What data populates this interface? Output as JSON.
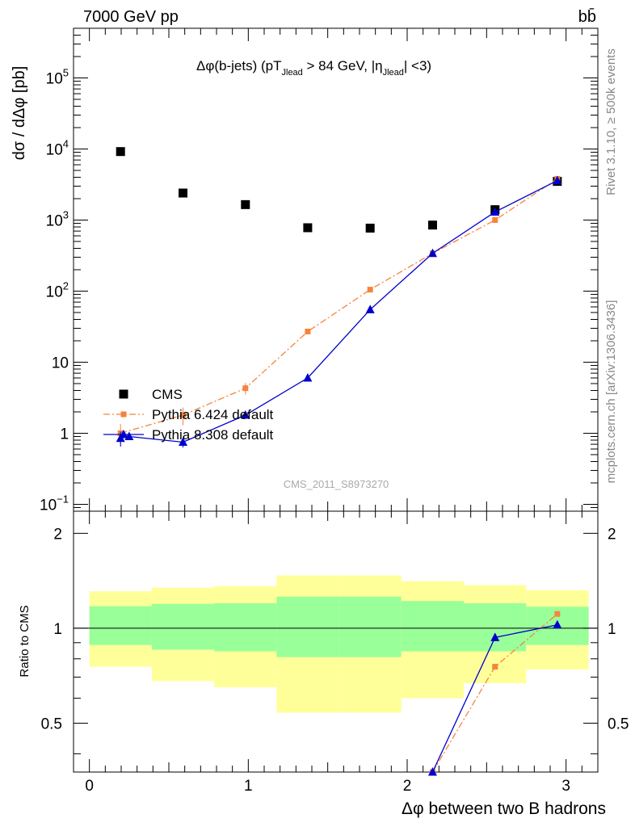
{
  "header": {
    "left": "7000 GeV pp",
    "right": "bb̄"
  },
  "side_labels": {
    "rivet": "Rivet 3.1.10, ≥ 500k events",
    "mcplots": "mcplots.cern.ch [arXiv:1306.3436]"
  },
  "watermark": "CMS_2011_S8973270",
  "chart_data": [
    {
      "type": "scatter",
      "panel": "main",
      "title": "Δφ(b-jets) (pT_Jlead > 84 GeV, |η_Jlead| <3)",
      "ylabel": "dσ / dΔφ [pb]",
      "xlim": [
        -0.1,
        3.2
      ],
      "ylim": [
        0.08,
        500000
      ],
      "yscale": "log",
      "yticks": [
        {
          "v": 0.1,
          "label": "10⁻¹"
        },
        {
          "v": 1,
          "label": "1"
        },
        {
          "v": 10,
          "label": "10"
        },
        {
          "v": 100,
          "label": "10²"
        },
        {
          "v": 1000,
          "label": "10³"
        },
        {
          "v": 10000,
          "label": "10⁴"
        },
        {
          "v": 100000,
          "label": "10⁵"
        }
      ],
      "legend": [
        "CMS",
        "Pythia 6.424 default",
        "Pythia 8.308 default"
      ],
      "legend_position": "lower-left",
      "series": [
        {
          "name": "CMS",
          "color": "#000000",
          "marker": "square",
          "x": [
            0.196,
            0.589,
            0.982,
            1.374,
            1.767,
            2.16,
            2.553,
            2.945
          ],
          "y": [
            9200,
            2400,
            1650,
            780,
            770,
            850,
            1400,
            3500
          ]
        },
        {
          "name": "Pythia 6.424 default",
          "color": "#f5843c",
          "marker": "square",
          "line": "dashdot",
          "x": [
            0.196,
            0.589,
            0.982,
            1.374,
            1.767,
            2.16,
            2.553,
            2.945
          ],
          "y": [
            1.0,
            1.8,
            4.3,
            27,
            105,
            340,
            1000,
            3800
          ],
          "yerr": [
            0.35,
            0.5,
            0.8,
            2,
            5,
            10,
            20,
            60
          ]
        },
        {
          "name": "Pythia 8.308 default",
          "color": "#0000cc",
          "marker": "triangle",
          "line": "solid",
          "x": [
            0.196,
            0.25,
            0.589,
            0.982,
            1.374,
            1.767,
            2.16,
            2.553,
            2.945
          ],
          "y": [
            0.85,
            0.9,
            0.75,
            1.8,
            6,
            55,
            340,
            1300,
            3600
          ],
          "yerr": [
            0.2,
            0.1,
            0.12,
            0.2,
            0.5,
            3,
            10,
            25,
            60
          ]
        }
      ]
    },
    {
      "type": "area",
      "panel": "ratio",
      "xlabel": "Δφ between two B hadrons",
      "ylabel": "Ratio to CMS",
      "xlim": [
        -0.1,
        3.2
      ],
      "ylim": [
        0.35,
        2.35
      ],
      "xticks": [
        0,
        1,
        2,
        3
      ],
      "yticks": [
        0.5,
        1,
        2
      ],
      "bins": [
        {
          "lo": 0.0,
          "hi": 0.393,
          "y1lo": 0.755,
          "y1hi": 1.31,
          "y2lo": 0.885,
          "y2hi": 1.175
        },
        {
          "lo": 0.393,
          "hi": 0.785,
          "y1lo": 0.68,
          "y1hi": 1.345,
          "y2lo": 0.855,
          "y2hi": 1.195
        },
        {
          "lo": 0.785,
          "hi": 1.178,
          "y1lo": 0.65,
          "y1hi": 1.36,
          "y2lo": 0.845,
          "y2hi": 1.2
        },
        {
          "lo": 1.178,
          "hi": 1.571,
          "y1lo": 0.54,
          "y1hi": 1.47,
          "y2lo": 0.81,
          "y2hi": 1.26
        },
        {
          "lo": 1.571,
          "hi": 1.963,
          "y1lo": 0.54,
          "y1hi": 1.47,
          "y2lo": 0.81,
          "y2hi": 1.26
        },
        {
          "lo": 1.963,
          "hi": 2.356,
          "y1lo": 0.6,
          "y1hi": 1.41,
          "y2lo": 0.845,
          "y2hi": 1.22
        },
        {
          "lo": 2.356,
          "hi": 2.749,
          "y1lo": 0.67,
          "y1hi": 1.37,
          "y2lo": 0.845,
          "y2hi": 1.2
        },
        {
          "lo": 2.749,
          "hi": 3.142,
          "y1lo": 0.74,
          "y1hi": 1.32,
          "y2lo": 0.885,
          "y2hi": 1.17
        }
      ],
      "band_colors": {
        "outer": "#ffff99",
        "inner": "#99ff99"
      },
      "series": [
        {
          "name": "Pythia 6.424 default",
          "color": "#f5843c",
          "x": [
            2.16,
            2.553,
            2.945
          ],
          "y": [
            0.35,
            0.755,
            1.11
          ]
        },
        {
          "name": "Pythia 8.308 default",
          "color": "#0000cc",
          "x": [
            2.16,
            2.553,
            2.945
          ],
          "y": [
            0.35,
            0.935,
            1.025
          ]
        }
      ]
    }
  ]
}
